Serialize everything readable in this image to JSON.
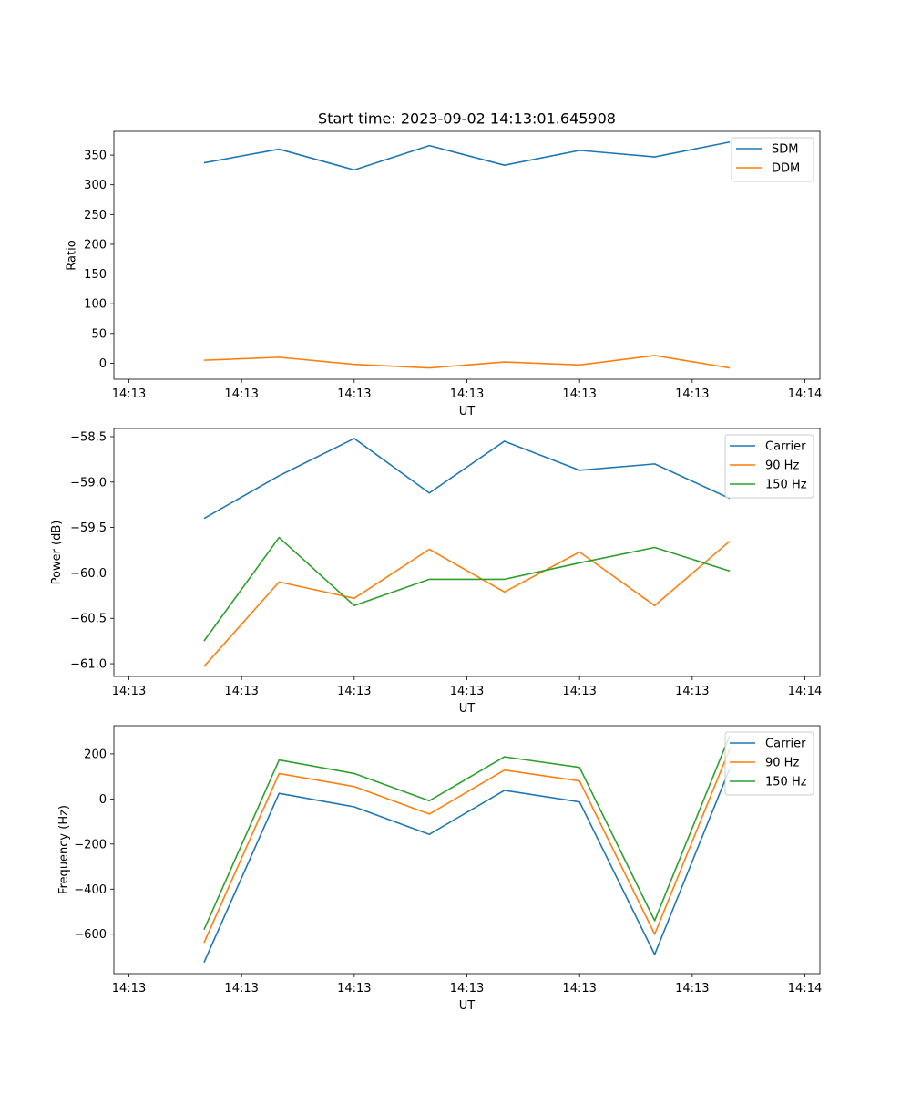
{
  "figure": {
    "title": "Start time: 2023-09-02 14:13:01.645908"
  },
  "colors": {
    "blue": "#1f77b4",
    "orange": "#ff7f0e",
    "green": "#2ca02c"
  },
  "chart_data": [
    {
      "id": "ratio",
      "type": "line",
      "ylabel": "Ratio",
      "xlabel": "UT",
      "xlim": [
        -0.2,
        9.2
      ],
      "ylim": [
        -27,
        390
      ],
      "x": [
        1,
        2,
        3,
        4,
        5,
        6,
        7,
        8
      ],
      "xticks": [
        0,
        1.5,
        3,
        4.5,
        6,
        7.5,
        9
      ],
      "xticklabels": [
        "14:13",
        "14:13",
        "14:13",
        "14:13",
        "14:13",
        "14:13",
        "14:14"
      ],
      "yticks": [
        0,
        50,
        100,
        150,
        200,
        250,
        300,
        350
      ],
      "yticklabels": [
        "0",
        "50",
        "100",
        "150",
        "200",
        "250",
        "300",
        "350"
      ],
      "legend": "top-right",
      "series": [
        {
          "name": "SDM",
          "color": "#1f77b4",
          "values": [
            337,
            360,
            325,
            366,
            333,
            358,
            347,
            372
          ]
        },
        {
          "name": "DDM",
          "color": "#ff7f0e",
          "values": [
            5,
            10,
            -2,
            -8,
            2,
            -3,
            13,
            -8
          ]
        }
      ]
    },
    {
      "id": "power",
      "type": "line",
      "ylabel": "Power (dB)",
      "xlabel": "UT",
      "xlim": [
        -0.2,
        9.2
      ],
      "ylim": [
        -61.14,
        -58.41
      ],
      "x": [
        1,
        2,
        3,
        4,
        5,
        6,
        7,
        8
      ],
      "xticks": [
        0,
        1.5,
        3,
        4.5,
        6,
        7.5,
        9
      ],
      "xticklabels": [
        "14:13",
        "14:13",
        "14:13",
        "14:13",
        "14:13",
        "14:13",
        "14:14"
      ],
      "yticks": [
        -61.0,
        -60.5,
        -60.0,
        -59.5,
        -59.0,
        -58.5
      ],
      "yticklabels": [
        "−61.0",
        "−60.5",
        "−60.0",
        "−59.5",
        "−59.0",
        "−58.5"
      ],
      "legend": "top-right",
      "series": [
        {
          "name": "Carrier",
          "color": "#1f77b4",
          "values": [
            -59.4,
            -58.93,
            -58.52,
            -59.12,
            -58.55,
            -58.87,
            -58.8,
            -59.18
          ]
        },
        {
          "name": "90 Hz",
          "color": "#ff7f0e",
          "values": [
            -61.03,
            -60.1,
            -60.28,
            -59.74,
            -60.21,
            -59.77,
            -60.36,
            -59.65
          ]
        },
        {
          "name": "150 Hz",
          "color": "#2ca02c",
          "values": [
            -60.75,
            -59.61,
            -60.36,
            -60.07,
            -60.07,
            -59.89,
            -59.72,
            -59.98
          ]
        }
      ]
    },
    {
      "id": "frequency",
      "type": "line",
      "ylabel": "Frequency (Hz)",
      "xlabel": "UT",
      "xlim": [
        -0.2,
        9.2
      ],
      "ylim": [
        -775,
        325
      ],
      "x": [
        1,
        2,
        3,
        4,
        5,
        6,
        7,
        8
      ],
      "xticks": [
        0,
        1.5,
        3,
        4.5,
        6,
        7.5,
        9
      ],
      "xticklabels": [
        "14:13",
        "14:13",
        "14:13",
        "14:13",
        "14:13",
        "14:13",
        "14:14"
      ],
      "yticks": [
        -600,
        -400,
        -200,
        0,
        200
      ],
      "yticklabels": [
        "−600",
        "−400",
        "−200",
        "0",
        "200"
      ],
      "legend": "top-right",
      "series": [
        {
          "name": "Carrier",
          "color": "#1f77b4",
          "values": [
            -725,
            25,
            -35,
            -157,
            38,
            -13,
            -690,
            135
          ]
        },
        {
          "name": "90 Hz",
          "color": "#ff7f0e",
          "values": [
            -638,
            113,
            55,
            -67,
            128,
            80,
            -600,
            222
          ]
        },
        {
          "name": "150 Hz",
          "color": "#2ca02c",
          "values": [
            -580,
            173,
            113,
            -8,
            187,
            140,
            -540,
            282
          ]
        }
      ]
    }
  ]
}
